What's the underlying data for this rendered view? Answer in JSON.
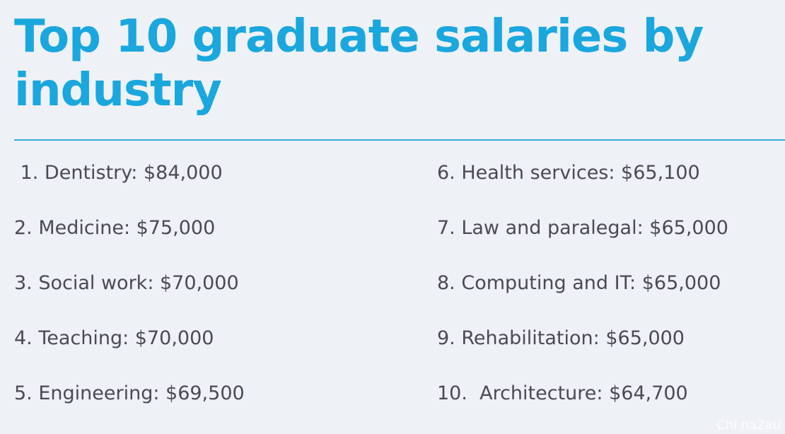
{
  "title": "Top 10 graduate salaries by industry",
  "left_items": [
    " 1. Dentistry: $84,000",
    "2. Medicine: $75,000",
    "3. Social work: $70,000",
    "4. Teaching: $70,000",
    "5. Engineering: $69,500"
  ],
  "right_items": [
    "6. Health services: $65,100",
    "7. Law and paralegal: $65,000",
    "8. Computing and IT: $65,000",
    "9. Rehabilitation: $65,000",
    "10.  Architecture: $64,700"
  ],
  "watermark": "Chi na2au",
  "colors": {
    "title": "#1aa7dd",
    "divider": "#39a9d4",
    "text": "#4a4a55",
    "background": "#eef1f6"
  }
}
